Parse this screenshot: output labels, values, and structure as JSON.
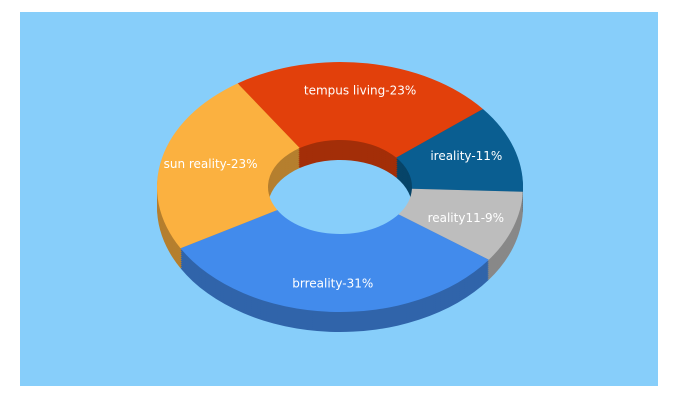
{
  "chart_data": {
    "type": "donut3d",
    "values": [
      23,
      11,
      9,
      31,
      23
    ],
    "value_labels": [
      "tempus living-23%",
      "ireality-11%",
      "reality11-9%",
      "brreality-31%",
      "sun reality-23%"
    ],
    "colors": [
      "#e2400b",
      "#0a5e91",
      "#bdbdbd",
      "#428bec",
      "#fbb140"
    ],
    "background": "#87cefa"
  }
}
